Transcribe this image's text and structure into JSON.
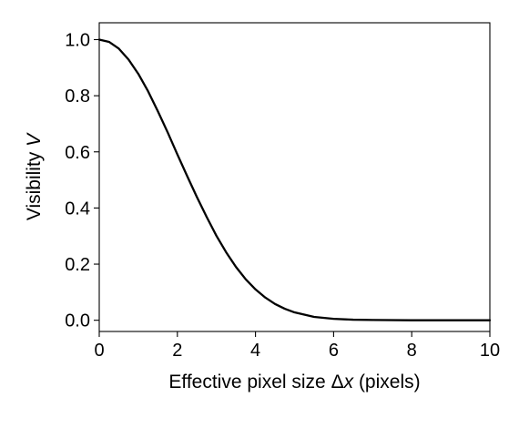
{
  "chart_data": {
    "type": "line",
    "title": "",
    "xlabel": "Effective pixel size Δx (pixels)",
    "xlabel_parts": {
      "prefix": "Effective pixel size Δ",
      "var": "x",
      "suffix": " (pixels)"
    },
    "ylabel": "Visibility V",
    "ylabel_parts": {
      "prefix": "Visibility ",
      "var": "V"
    },
    "xlim": [
      0,
      10
    ],
    "ylim": [
      -0.04,
      1.06
    ],
    "xticks": [
      0,
      2,
      4,
      6,
      8,
      10
    ],
    "xtick_labels": [
      "0",
      "2",
      "4",
      "6",
      "8",
      "10"
    ],
    "yticks": [
      0.0,
      0.2,
      0.4,
      0.6,
      0.8,
      1.0
    ],
    "ytick_labels": [
      "0.0",
      "0.2",
      "0.4",
      "0.6",
      "0.8",
      "1.0"
    ],
    "grid": false,
    "line_color": "#000000",
    "series": [
      {
        "x": [
          0,
          0.25,
          0.5,
          0.75,
          1.0,
          1.25,
          1.5,
          1.75,
          2.0,
          2.25,
          2.5,
          2.75,
          3.0,
          3.25,
          3.5,
          3.75,
          4.0,
          4.25,
          4.5,
          4.75,
          5.0,
          5.5,
          6.0,
          6.5,
          7.0,
          8.0,
          9.0,
          10.0
        ],
        "y": [
          1.0,
          0.992,
          0.968,
          0.929,
          0.878,
          0.816,
          0.745,
          0.67,
          0.591,
          0.514,
          0.439,
          0.368,
          0.301,
          0.242,
          0.19,
          0.146,
          0.11,
          0.081,
          0.058,
          0.041,
          0.028,
          0.012,
          0.005,
          0.002,
          0.001,
          0.0,
          0.0,
          0.0
        ]
      }
    ]
  }
}
